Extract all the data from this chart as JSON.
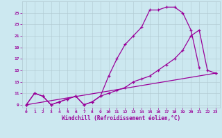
{
  "line1_x": [
    0,
    1,
    2,
    3,
    4,
    5,
    6,
    7,
    8,
    9,
    10,
    11,
    12,
    13,
    14,
    15,
    16,
    17,
    18,
    19,
    20,
    21
  ],
  "line1_y": [
    9,
    11,
    10.5,
    9,
    9.5,
    10,
    10.5,
    9,
    9.5,
    10.5,
    14,
    17,
    19.5,
    21,
    22.5,
    25.5,
    25.5,
    26,
    26,
    25,
    22,
    15.5
  ],
  "line2_x": [
    0,
    1,
    2,
    3,
    4,
    5,
    6,
    7,
    8,
    9,
    10,
    11,
    12,
    13,
    14,
    15,
    16,
    17,
    18,
    19,
    20,
    21,
    22,
    23
  ],
  "line2_y": [
    9,
    11,
    10.5,
    9,
    9.5,
    10,
    10.5,
    9,
    9.5,
    10.5,
    11,
    11.5,
    12,
    13,
    13.5,
    14,
    15,
    16,
    17,
    18.5,
    21,
    22,
    15,
    14.5
  ],
  "line3_x": [
    0,
    23
  ],
  "line3_y": [
    9,
    14.5
  ],
  "line_color": "#990099",
  "bg_color": "#cce8f0",
  "grid_color": "#b0c8d0",
  "xlabel": "Windchill (Refroidissement éolien,°C)",
  "xlim": [
    -0.5,
    23.5
  ],
  "ylim": [
    8.5,
    27
  ],
  "yticks": [
    9,
    11,
    13,
    15,
    17,
    19,
    21,
    23,
    25
  ],
  "xticks": [
    0,
    1,
    2,
    3,
    4,
    5,
    6,
    7,
    8,
    9,
    10,
    11,
    12,
    13,
    14,
    15,
    16,
    17,
    18,
    19,
    20,
    21,
    22,
    23
  ],
  "figsize": [
    3.2,
    2.0
  ],
  "dpi": 100
}
